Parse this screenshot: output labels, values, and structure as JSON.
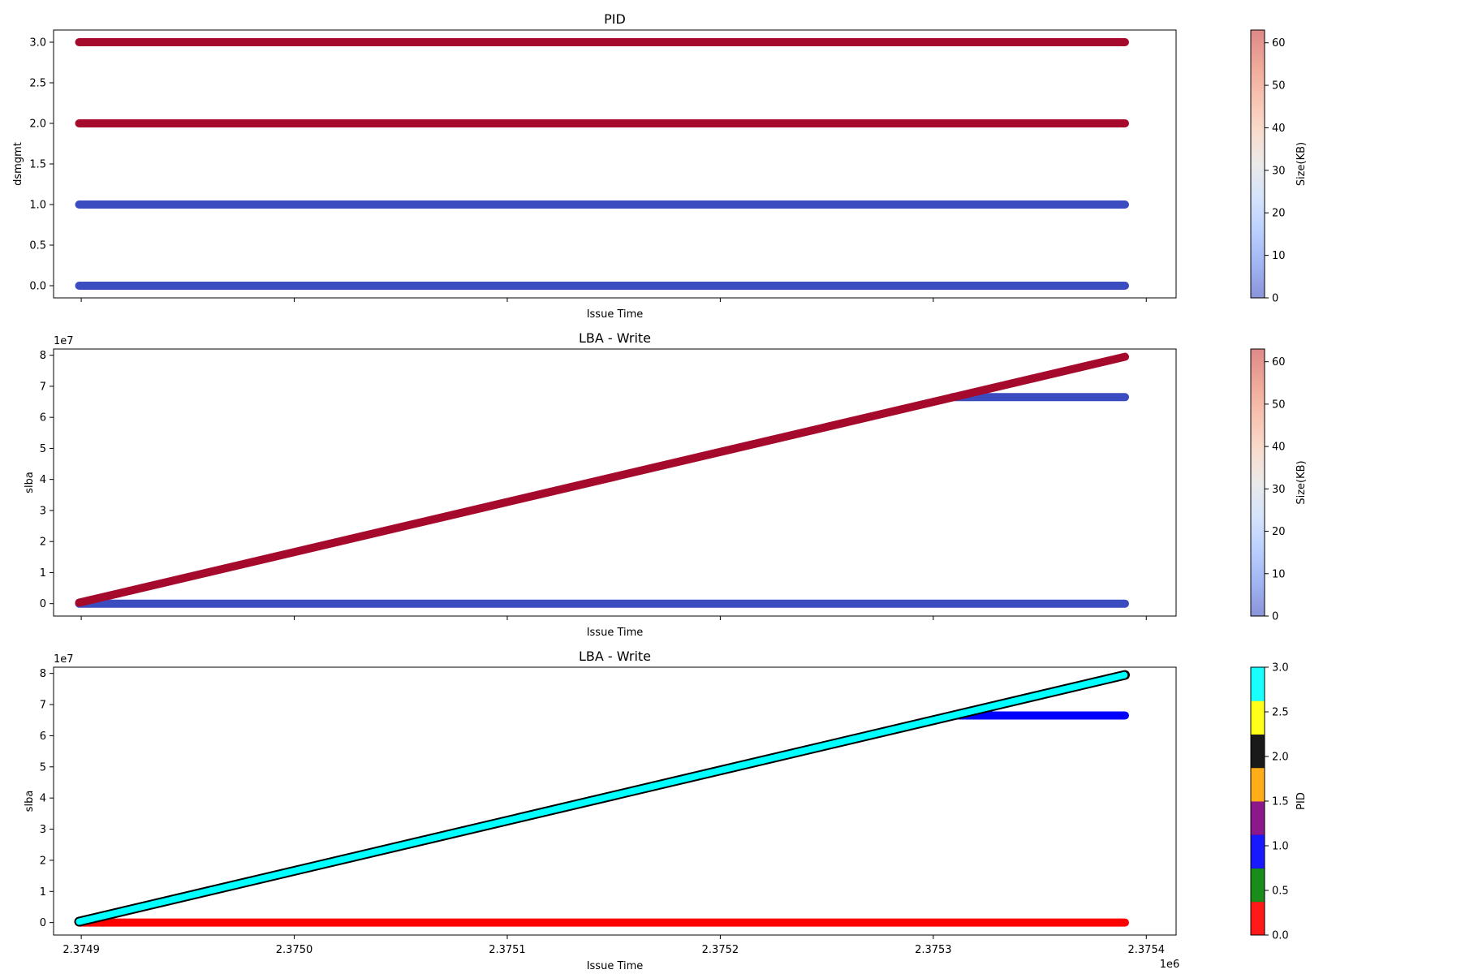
{
  "chart_data": [
    {
      "type": "scatter",
      "title": "PID",
      "xlabel": "Issue Time",
      "ylabel": "dsmgmt",
      "x_range": [
        2374887,
        2375414
      ],
      "y_range": [
        -0.15,
        3.15
      ],
      "x_tick_values": [
        2374900,
        2375000,
        2375100,
        2375200,
        2375300,
        2375400
      ],
      "show_x_tick_labels": false,
      "y_ticks": [
        0.0,
        0.5,
        1.0,
        1.5,
        2.0,
        2.5,
        3.0
      ],
      "y_tick_labels": [
        "0.0",
        "0.5",
        "1.0",
        "1.5",
        "2.0",
        "2.5",
        "3.0"
      ],
      "y_offset_label": "",
      "colorbar": {
        "label": "Size(KB)",
        "cmap": "coolwarm",
        "range": [
          0,
          63
        ],
        "ticks": [
          0,
          10,
          20,
          30,
          40,
          50,
          60
        ],
        "tick_labels": [
          "0",
          "10",
          "20",
          "30",
          "40",
          "50",
          "60"
        ]
      },
      "series": [
        {
          "y_start": 3.0,
          "y_end": 3.0,
          "x_start": 2374899,
          "x_end": 2375390,
          "color": "#a5092c"
        },
        {
          "y_start": 2.0,
          "y_end": 2.0,
          "x_start": 2374899,
          "x_end": 2375390,
          "color": "#a5092c"
        },
        {
          "y_start": 1.0,
          "y_end": 1.0,
          "x_start": 2374899,
          "x_end": 2375390,
          "color": "#3b4cc0"
        },
        {
          "y_start": 0.0,
          "y_end": 0.0,
          "x_start": 2374899,
          "x_end": 2375390,
          "color": "#3b4cc0"
        }
      ]
    },
    {
      "type": "scatter",
      "title": "LBA - Write",
      "xlabel": "Issue Time",
      "ylabel": "slba",
      "x_range": [
        2374887,
        2375414
      ],
      "y_range": [
        -4000000,
        82000000
      ],
      "x_tick_values": [
        2374900,
        2375000,
        2375100,
        2375200,
        2375300,
        2375400
      ],
      "show_x_tick_labels": false,
      "y_ticks": [
        0,
        10000000,
        20000000,
        30000000,
        40000000,
        50000000,
        60000000,
        70000000,
        80000000
      ],
      "y_tick_labels": [
        "0",
        "1",
        "2",
        "3",
        "4",
        "5",
        "6",
        "7",
        "8"
      ],
      "y_offset_label": "1e7",
      "colorbar": {
        "label": "Size(KB)",
        "cmap": "coolwarm",
        "range": [
          0,
          63
        ],
        "ticks": [
          0,
          10,
          20,
          30,
          40,
          50,
          60
        ],
        "tick_labels": [
          "0",
          "10",
          "20",
          "30",
          "40",
          "50",
          "60"
        ]
      },
      "series": [
        {
          "y_start": 0,
          "y_end": 0,
          "x_start": 2374899,
          "x_end": 2375390,
          "color": "#3b4cc0"
        },
        {
          "y_start": 66500000,
          "y_end": 66500000,
          "x_start": 2375309,
          "x_end": 2375390,
          "color": "#3b4cc0"
        },
        {
          "y_start": 300000,
          "y_end": 79500000,
          "x_start": 2374899,
          "x_end": 2375390,
          "color": "#a5092c"
        }
      ]
    },
    {
      "type": "scatter",
      "title": "LBA - Write",
      "xlabel": "Issue Time",
      "ylabel": "slba",
      "x_range": [
        2374887,
        2375414
      ],
      "y_range": [
        -4000000,
        82000000
      ],
      "x_tick_values": [
        2374900,
        2375000,
        2375100,
        2375200,
        2375300,
        2375400
      ],
      "show_x_tick_labels": true,
      "x_tick_labels": [
        "2.3749",
        "2.3750",
        "2.3751",
        "2.3752",
        "2.3753",
        "2.3754"
      ],
      "x_offset_label": "1e6",
      "y_ticks": [
        0,
        10000000,
        20000000,
        30000000,
        40000000,
        50000000,
        60000000,
        70000000,
        80000000
      ],
      "y_tick_labels": [
        "0",
        "1",
        "2",
        "3",
        "4",
        "5",
        "6",
        "7",
        "8"
      ],
      "y_offset_label": "1e7",
      "colorbar": {
        "label": "PID",
        "cmap": "discrete",
        "range": [
          0,
          3
        ],
        "colors": [
          "#ff0000",
          "#008000",
          "#0000ff",
          "#800080",
          "#ffa500",
          "#000000",
          "#ffff00",
          "#00ffff"
        ],
        "ticks": [
          0.0,
          0.5,
          1.0,
          1.5,
          2.0,
          2.5,
          3.0
        ],
        "tick_labels": [
          "0.0",
          "0.5",
          "1.0",
          "1.5",
          "2.0",
          "2.5",
          "3.0"
        ]
      },
      "series": [
        {
          "y_start": 0,
          "y_end": 0,
          "x_start": 2374899,
          "x_end": 2375390,
          "color": "#ff0000"
        },
        {
          "y_start": 66500000,
          "y_end": 66500000,
          "x_start": 2375309,
          "x_end": 2375390,
          "color": "#0000ff"
        },
        {
          "y_start": 300000,
          "y_end": 79500000,
          "x_start": 2374899,
          "x_end": 2375390,
          "color": "#00ffff",
          "edge_color": "#000000"
        }
      ]
    }
  ]
}
